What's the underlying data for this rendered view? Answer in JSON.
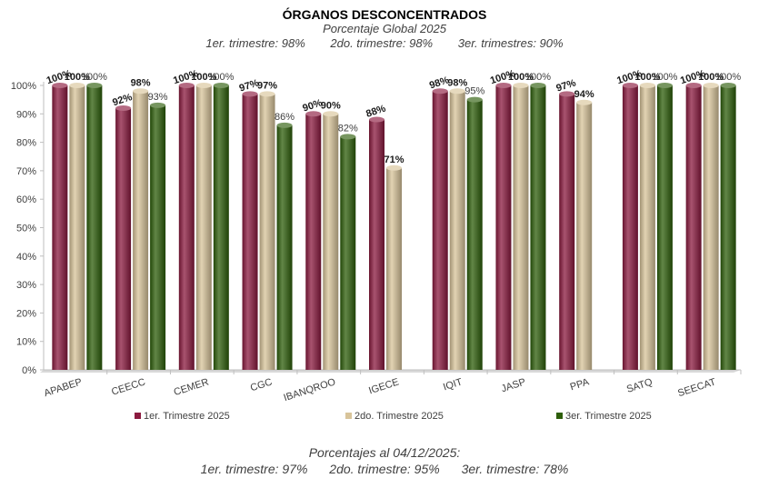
{
  "header": {
    "title": "ÓRGANOS DESCONCENTRADOS",
    "subtitle": "Porcentaje Global  2025",
    "quarters": [
      "1er. trimestre: 98%",
      "2do. trimestre: 98%",
      "3er. trimestres: 90%"
    ]
  },
  "footer": {
    "line1": "Porcentajes al 04/12/2025:",
    "items": [
      "1er. trimestre: 97%",
      "2do. trimestre: 95%",
      "3er. trimestre: 78%"
    ]
  },
  "colors": {
    "q1": "#8b1a3f",
    "q2": "#d8c49a",
    "q3": "#2d5e0a"
  },
  "chart_data": {
    "type": "bar",
    "title": "ÓRGANOS DESCONCENTRADOS",
    "xlabel": "",
    "ylabel": "",
    "ylim": [
      0,
      100
    ],
    "yticks": [
      "0%",
      "10%",
      "20%",
      "30%",
      "40%",
      "50%",
      "60%",
      "70%",
      "80%",
      "90%",
      "100%"
    ],
    "legend_position": "bottom",
    "categories": [
      "APABEP",
      "CEECC",
      "CEMER",
      "CGC",
      "IBANQROO",
      "IGECE",
      "IQIT",
      "JASP",
      "PPA",
      "SATQ",
      "SEECAT"
    ],
    "series": [
      {
        "name": "1er. Trimestre 2025",
        "values": [
          100,
          92,
          100,
          97,
          90,
          88,
          98,
          100,
          97,
          100,
          100
        ],
        "labels": [
          "100%",
          "92%",
          "100%",
          "97%",
          "90%",
          "88%",
          "98%",
          "100%",
          "97%",
          "100%",
          "100%"
        ]
      },
      {
        "name": "2do. Trimestre 2025",
        "values": [
          100,
          98,
          100,
          97,
          90,
          71,
          98,
          100,
          94,
          100,
          100
        ],
        "labels": [
          "100%",
          "98%",
          "100%",
          "97%",
          "90%",
          "71%",
          "98%",
          "100%",
          "94%",
          "100%",
          "100%"
        ]
      },
      {
        "name": "3er. Trimestre 2025",
        "values": [
          100,
          93,
          100,
          86,
          82,
          null,
          95,
          100,
          null,
          100,
          100
        ],
        "labels": [
          "100%",
          "93%",
          "100%",
          "86%",
          "82%",
          "",
          "95%",
          "100%",
          "",
          "100%",
          "100%"
        ]
      }
    ]
  }
}
